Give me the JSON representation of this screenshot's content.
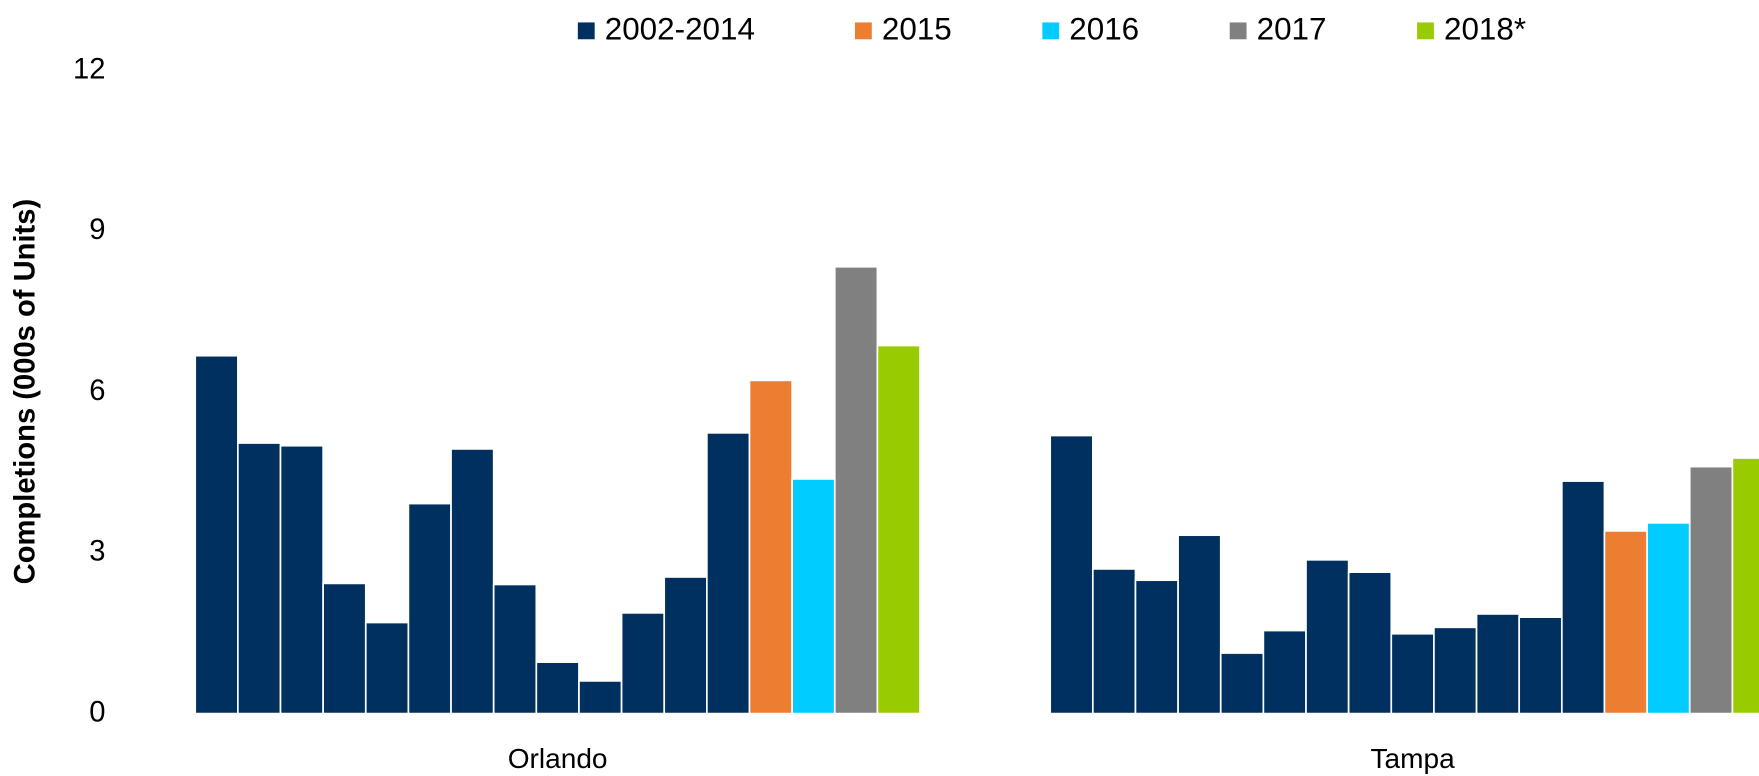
{
  "chart_data": {
    "type": "bar",
    "y_label": "Completions (000s of Units)",
    "categories": [
      "Orlando",
      "Tampa"
    ],
    "series": [
      {
        "name": "2002-2014",
        "color": "#00305f",
        "values": [
          [
            6.68,
            5.05,
            5.0,
            2.43,
            1.7,
            3.92,
            4.94,
            2.41,
            0.96,
            0.61,
            1.88,
            2.55,
            5.24
          ],
          [
            5.19,
            2.7,
            2.49,
            3.33,
            1.13,
            1.55,
            2.87,
            2.64,
            1.49,
            1.61,
            1.86,
            1.8,
            4.34
          ]
        ]
      },
      {
        "name": "2015",
        "color": "#ed7d31",
        "values": [
          6.22,
          3.41
        ]
      },
      {
        "name": "2016",
        "color": "#00ccff",
        "values": [
          4.38,
          3.56
        ]
      },
      {
        "name": "2017",
        "color": "#808080",
        "values": [
          8.34,
          4.61
        ]
      },
      {
        "name": "2018*",
        "color": "#99cc00",
        "values": [
          6.87,
          4.77
        ]
      }
    ],
    "ylim": [
      0,
      12
    ],
    "yticks": [
      0,
      3,
      6,
      9,
      12
    ],
    "grid": false,
    "legend": "top"
  }
}
